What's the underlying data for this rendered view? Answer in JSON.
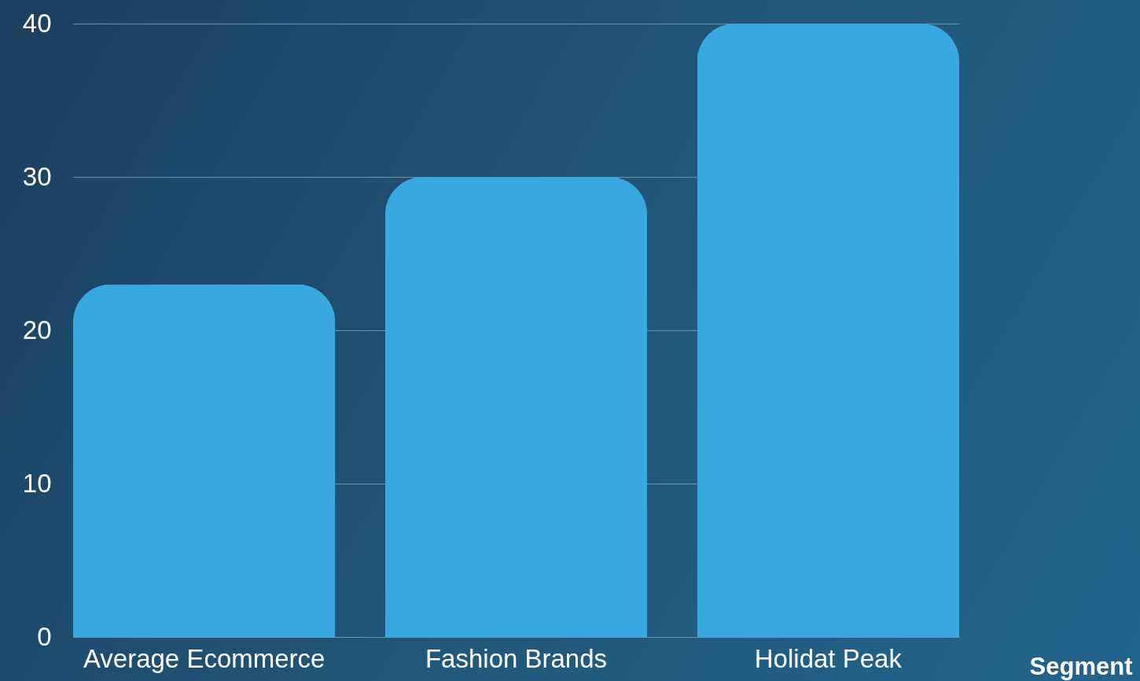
{
  "chart_data": {
    "type": "bar",
    "xlabel": "Segment",
    "categories": [
      "Average Ecommerce",
      "Fashion Brands",
      "Holidat Peak"
    ],
    "values": [
      23,
      30,
      40
    ],
    "color": "#38a8e0",
    "ylim": [
      0,
      40
    ],
    "yticks": [
      0,
      10,
      20,
      30,
      40
    ],
    "grid": "y"
  }
}
